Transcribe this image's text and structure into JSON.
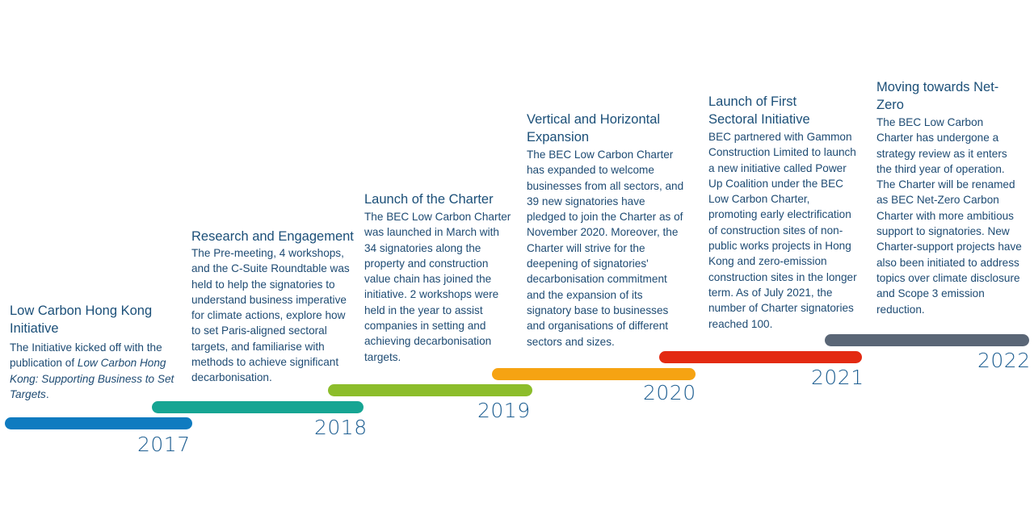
{
  "milestones": [
    {
      "year": "2017",
      "color": "#0f7bc0",
      "title": "Low Carbon Hong Kong Initiative",
      "body_pre": "The Initiative kicked off with the publication of ",
      "body_italic": "Low Carbon Hong Kong: Supporting Business to Set Targets",
      "body_post": "."
    },
    {
      "year": "2018",
      "color": "#16a593",
      "title": "Research and Engagement",
      "body": "The Pre-meeting, 4 workshops, and the C-Suite Roundtable was held to help the signatories to understand business imperative for climate actions, explore how to set Paris-aligned sectoral targets, and familiarise with methods to achieve significant decarbonisation."
    },
    {
      "year": "2019",
      "color": "#8cbd2b",
      "title": "Launch of the Charter",
      "body": "The BEC Low Carbon Charter was launched in March with 34 signatories along the property and construction value chain has joined the initiative. 2 workshops were held in the year to assist companies in setting and achieving decarbonisation targets."
    },
    {
      "year": "2020",
      "color": "#f6a312",
      "title": "Vertical and Horizontal Expansion",
      "body": "The BEC Low Carbon Charter has expanded to welcome businesses from all sectors, and 39 new signatories have pledged to join the Charter as of November 2020. Moreover, the Charter will strive for the deepening of signatories' decarbonisation commitment and the expansion of its signatory base  to businesses and organisations of different sectors and sizes."
    },
    {
      "year": "2021",
      "color": "#e32a12",
      "title": "Launch of First Sectoral Initiative",
      "body": "BEC partnered with Gammon Construction Limited to launch a new initiative called Power Up Coalition under the BEC Low Carbon Charter, promoting early electrification of construction sites of non-public works projects in Hong Kong and zero-emission construction sites in the longer term. As of July 2021, the number of Charter signatories reached 100."
    },
    {
      "year": "2022",
      "color": "#5a6676",
      "title": "Moving towards Net-Zero",
      "body": "The BEC Low Carbon Charter has undergone a strategy review as it enters the third year of operation. The Charter will be renamed as BEC Net-Zero Carbon Charter with more ambitious support to signatories. New Charter-support projects have also been initiated to address topics over climate disclosure and Scope 3 emission reduction."
    }
  ]
}
